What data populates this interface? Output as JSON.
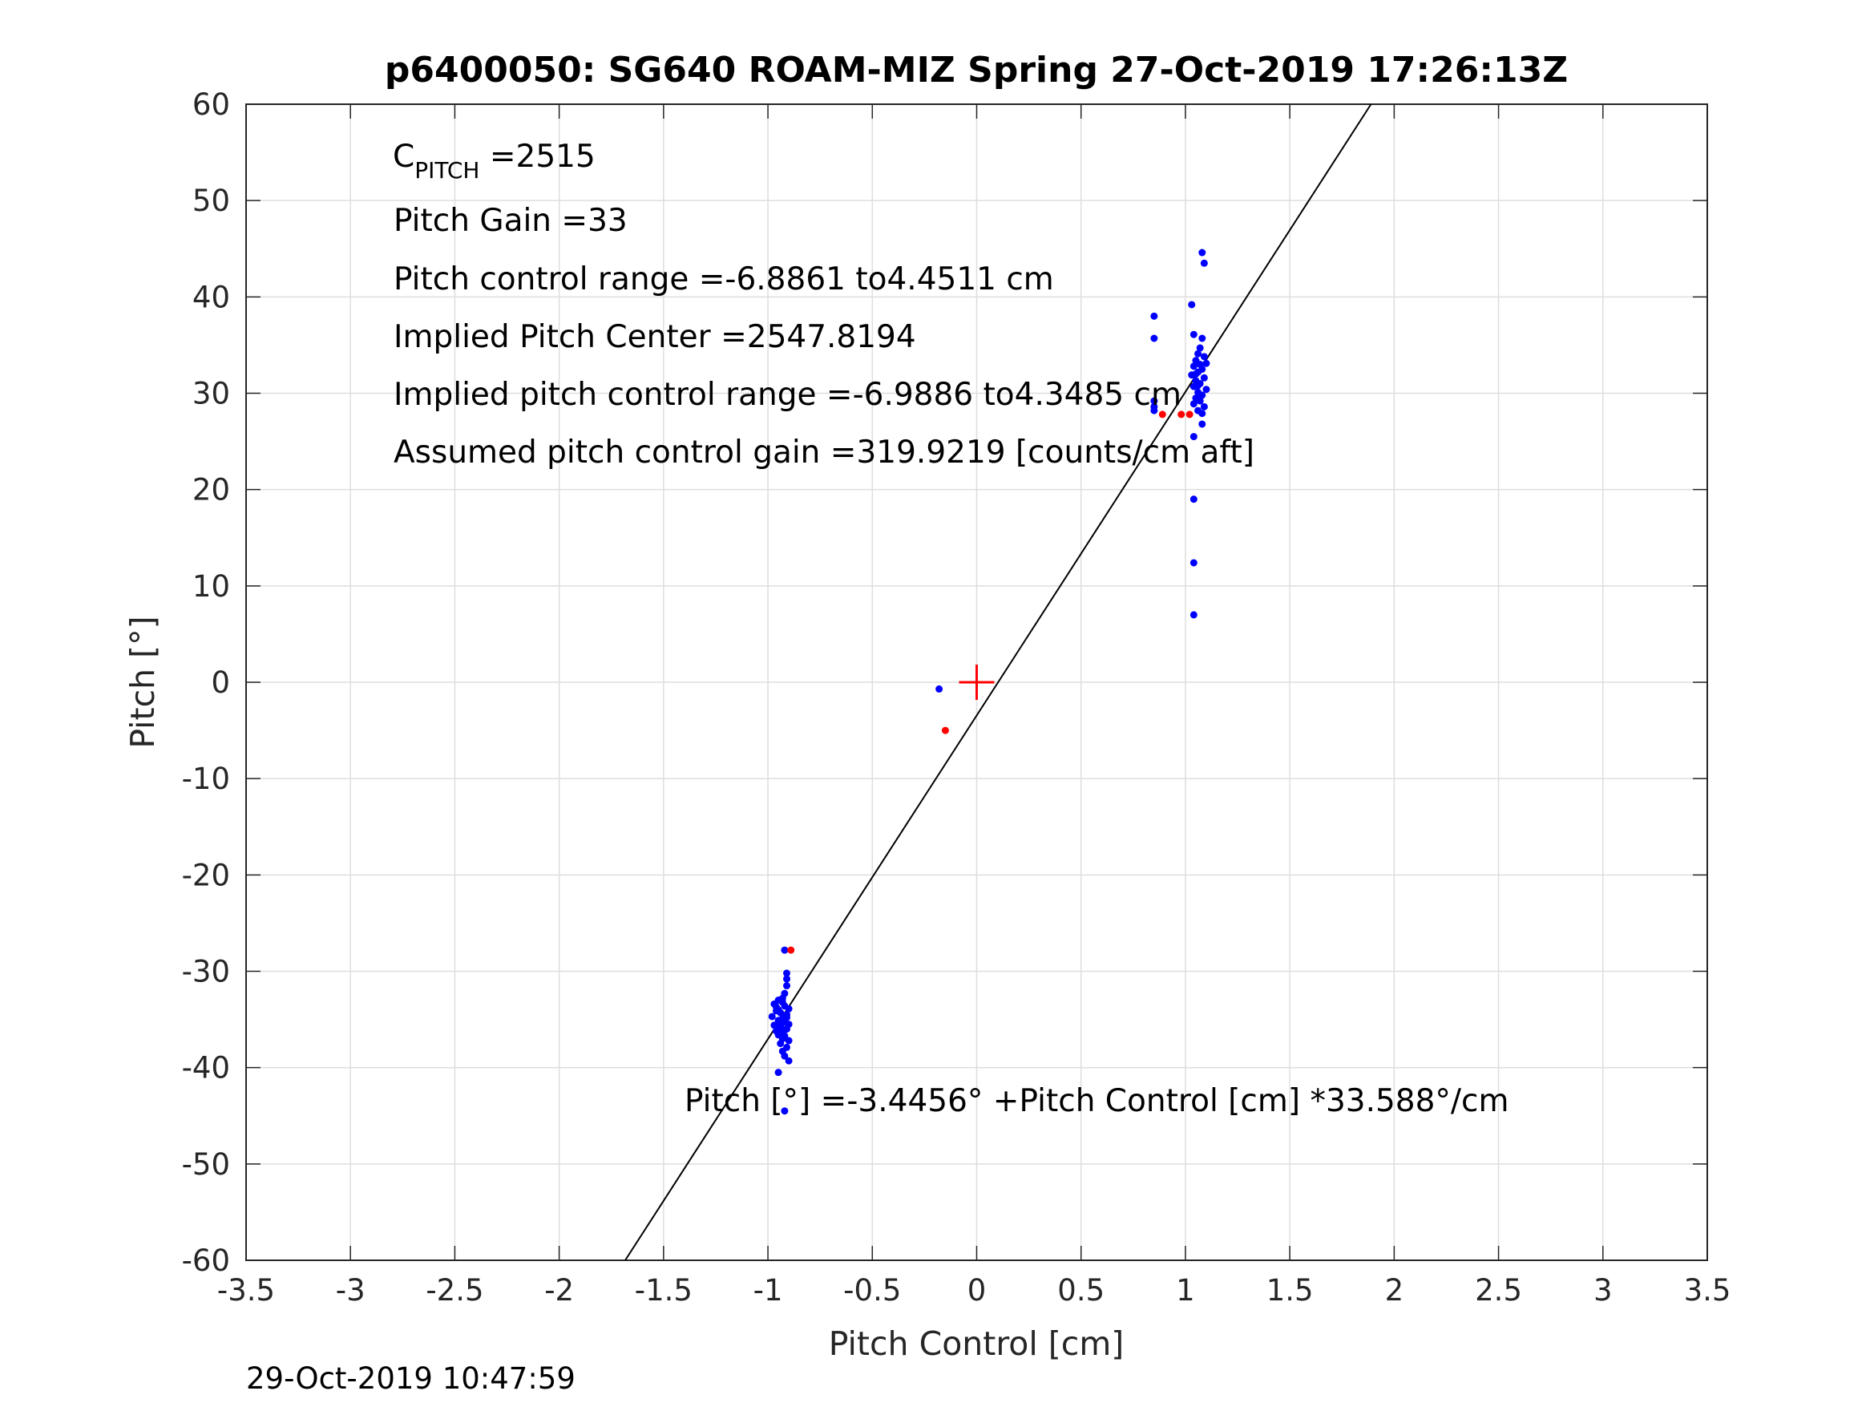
{
  "chart_data": {
    "type": "scatter",
    "title": "p6400050: SG640 ROAM-MIZ Spring 27-Oct-2019 17:26:13Z",
    "xlabel": "Pitch Control [cm]",
    "ylabel": "Pitch [°]",
    "xlim": [
      -3.5,
      3.5
    ],
    "ylim": [
      -60,
      60
    ],
    "xticks": [
      "-3.5",
      "-3",
      "-2.5",
      "-2",
      "-1.5",
      "-1",
      "-0.5",
      "0",
      "0.5",
      "1",
      "1.5",
      "2",
      "2.5",
      "3",
      "3.5"
    ],
    "yticks": [
      "60",
      "50",
      "40",
      "30",
      "20",
      "10",
      "0",
      "-10",
      "-20",
      "-30",
      "-40",
      "-50",
      "-60"
    ],
    "grid": true,
    "colors": {
      "points": "#0000ff",
      "outliers": "#ff0000",
      "center_marker": "#ff0000",
      "fit_line": "#000000",
      "grid": "#dedede"
    },
    "fit_line": {
      "intercept": -3.4456,
      "slope": 33.588
    },
    "center_marker": {
      "x": 0,
      "y": 0
    },
    "series": [
      {
        "color": "#0000ff",
        "points": [
          [
            -0.92,
            -27.8
          ],
          [
            -0.91,
            -30.2
          ],
          [
            -0.91,
            -30.8
          ],
          [
            -0.91,
            -31.5
          ],
          [
            -0.92,
            -32.3
          ],
          [
            -0.93,
            -32.8
          ],
          [
            -0.95,
            -33.0
          ],
          [
            -0.97,
            -33.4
          ],
          [
            -0.92,
            -33.6
          ],
          [
            -0.9,
            -33.9
          ],
          [
            -0.96,
            -34.1
          ],
          [
            -0.94,
            -34.3
          ],
          [
            -0.91,
            -34.5
          ],
          [
            -0.98,
            -34.7
          ],
          [
            -0.93,
            -34.9
          ],
          [
            -0.95,
            -35.1
          ],
          [
            -0.92,
            -35.3
          ],
          [
            -0.9,
            -35.5
          ],
          [
            -0.97,
            -35.6
          ],
          [
            -0.94,
            -35.8
          ],
          [
            -0.91,
            -36.0
          ],
          [
            -0.96,
            -36.2
          ],
          [
            -0.93,
            -36.4
          ],
          [
            -0.95,
            -36.6
          ],
          [
            -0.92,
            -36.9
          ],
          [
            -0.9,
            -37.2
          ],
          [
            -0.94,
            -37.5
          ],
          [
            -0.91,
            -37.9
          ],
          [
            -0.93,
            -38.3
          ],
          [
            -0.92,
            -38.8
          ],
          [
            -0.9,
            -39.3
          ],
          [
            -0.95,
            -40.5
          ],
          [
            -0.92,
            -44.5
          ],
          [
            -0.96,
            -33.7
          ],
          [
            -0.93,
            -33.2
          ],
          [
            -0.91,
            -34.8
          ],
          [
            -0.94,
            -35.4
          ],
          [
            -0.92,
            -36.7
          ],
          [
            -0.95,
            -34.0
          ],
          [
            -0.93,
            -37.0
          ],
          [
            -0.18,
            -0.7
          ],
          [
            0.85,
            38.0
          ],
          [
            0.85,
            35.7
          ],
          [
            0.85,
            29.2
          ],
          [
            0.85,
            28.6
          ],
          [
            0.85,
            28.2
          ],
          [
            1.03,
            39.2
          ],
          [
            1.04,
            36.1
          ],
          [
            1.08,
            44.6
          ],
          [
            1.09,
            43.5
          ],
          [
            1.08,
            35.7
          ],
          [
            1.07,
            34.7
          ],
          [
            1.06,
            34.1
          ],
          [
            1.09,
            33.8
          ],
          [
            1.05,
            33.4
          ],
          [
            1.1,
            33.1
          ],
          [
            1.04,
            32.8
          ],
          [
            1.08,
            32.5
          ],
          [
            1.06,
            32.2
          ],
          [
            1.03,
            31.9
          ],
          [
            1.09,
            31.6
          ],
          [
            1.05,
            31.3
          ],
          [
            1.07,
            31.0
          ],
          [
            1.04,
            30.7
          ],
          [
            1.1,
            30.4
          ],
          [
            1.06,
            30.1
          ],
          [
            1.08,
            29.8
          ],
          [
            1.05,
            29.5
          ],
          [
            1.07,
            29.2
          ],
          [
            1.04,
            28.9
          ],
          [
            1.09,
            28.6
          ],
          [
            1.06,
            28.2
          ],
          [
            1.08,
            27.9
          ],
          [
            1.08,
            26.8
          ],
          [
            1.04,
            25.5
          ],
          [
            1.04,
            19.0
          ],
          [
            1.04,
            12.4
          ],
          [
            1.04,
            7.0
          ],
          [
            1.05,
            32.0
          ],
          [
            1.07,
            33.0
          ],
          [
            1.06,
            30.8
          ]
        ]
      },
      {
        "color": "#ff0000",
        "points": [
          [
            -0.89,
            -27.8
          ],
          [
            -0.15,
            -5.0
          ],
          [
            0.89,
            27.8
          ],
          [
            0.98,
            27.8
          ],
          [
            1.02,
            27.8
          ]
        ]
      }
    ],
    "annotations": [
      {
        "main": "C",
        "subscript": "PITCH",
        "rest": " =2515"
      },
      {
        "text": "Pitch Gain =33"
      },
      {
        "text": "Pitch control range =-6.8861 to4.4511 cm"
      },
      {
        "text": "Implied Pitch Center =2547.8194"
      },
      {
        "text": "Implied pitch control range =-6.9886 to4.3485 cm"
      },
      {
        "text": "Assumed pitch control gain =319.9219 [counts/cm aft]"
      }
    ],
    "fit_label": "Pitch [°] =-3.4456° +Pitch Control [cm] *33.588°/cm",
    "footer": "29-Oct-2019 10:47:59"
  }
}
